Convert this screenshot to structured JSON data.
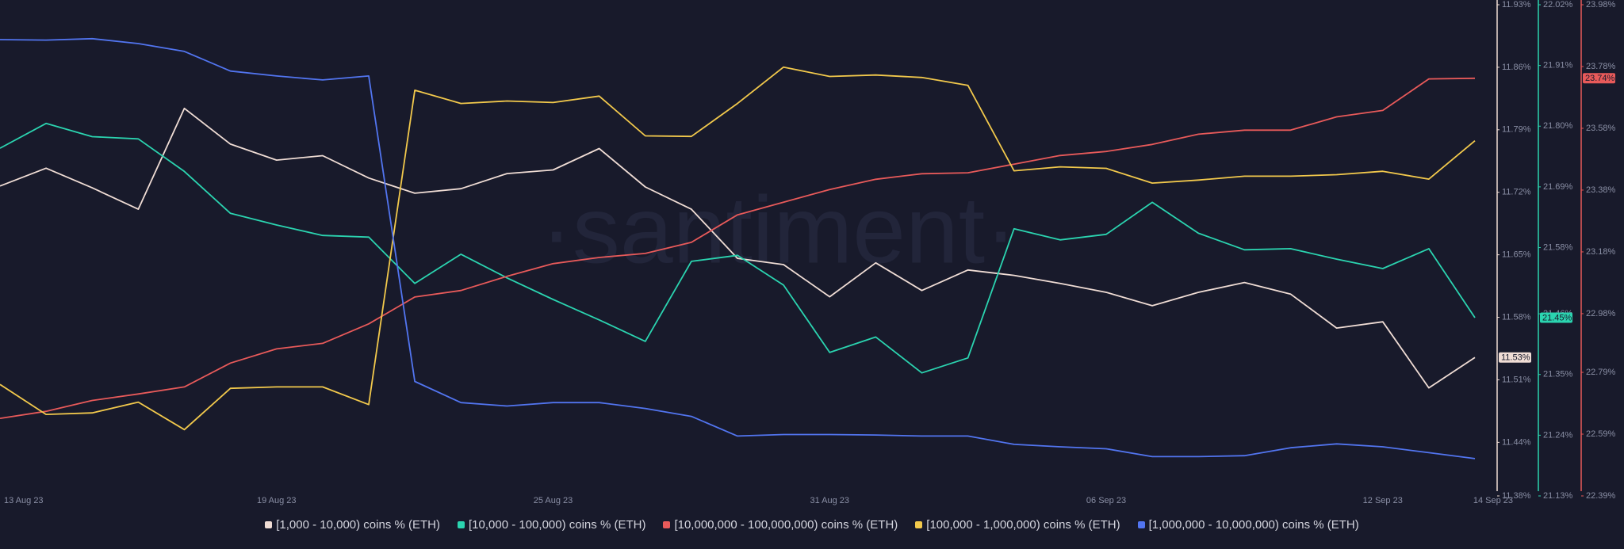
{
  "chart_data": {
    "type": "line",
    "watermark": "·santiment·",
    "categories": [
      "13 Aug 23",
      null,
      null,
      null,
      null,
      null,
      "19 Aug 23",
      null,
      null,
      null,
      null,
      null,
      "25 Aug 23",
      null,
      null,
      null,
      null,
      null,
      "31 Aug 23",
      null,
      null,
      null,
      null,
      null,
      "06 Sep 23",
      null,
      null,
      null,
      null,
      null,
      "12 Sep 23",
      null,
      "14 Sep 23"
    ],
    "axes": [
      {
        "lim": [
          11.38,
          11.93
        ],
        "color": "#f0ddd5",
        "ticks": [
          {
            "value": 11.38,
            "label": "11.38%"
          },
          {
            "value": 11.44,
            "label": "11.44%"
          },
          {
            "value": 11.51,
            "label": "11.51%"
          },
          {
            "value": 11.58,
            "label": "11.58%"
          },
          {
            "value": 11.65,
            "label": "11.65%"
          },
          {
            "value": 11.72,
            "label": "11.72%"
          },
          {
            "value": 11.79,
            "label": "11.79%"
          },
          {
            "value": 11.86,
            "label": "11.86%"
          },
          {
            "value": 11.93,
            "label": "11.93%"
          }
        ]
      },
      {
        "lim": [
          21.13,
          22.02
        ],
        "color": "#2bd4b0",
        "ticks": [
          {
            "value": 21.13,
            "label": "21.13%"
          },
          {
            "value": 21.24,
            "label": "21.24%"
          },
          {
            "value": 21.35,
            "label": "21.35%"
          },
          {
            "value": 21.46,
            "label": "21.46%"
          },
          {
            "value": 21.58,
            "label": "21.58%"
          },
          {
            "value": 21.69,
            "label": "21.69%"
          },
          {
            "value": 21.8,
            "label": "21.80%"
          },
          {
            "value": 21.91,
            "label": "21.91%"
          },
          {
            "value": 22.02,
            "label": "22.02%"
          }
        ]
      },
      {
        "lim": [
          22.39,
          23.98
        ],
        "color": "#e85a5a",
        "ticks": [
          {
            "value": 22.39,
            "label": "22.39%"
          },
          {
            "value": 22.59,
            "label": "22.59%"
          },
          {
            "value": 22.79,
            "label": "22.79%"
          },
          {
            "value": 22.98,
            "label": "22.98%"
          },
          {
            "value": 23.18,
            "label": "23.18%"
          },
          {
            "value": 23.38,
            "label": "23.38%"
          },
          {
            "value": 23.58,
            "label": "23.58%"
          },
          {
            "value": 23.78,
            "label": "23.78%"
          },
          {
            "value": 23.98,
            "label": "23.98%"
          }
        ]
      },
      {
        "lim": [
          0,
          100
        ]
      },
      {
        "lim": [
          0,
          100
        ]
      }
    ],
    "series": [
      {
        "name": "[1,000 - 10,000) coins % (ETH)",
        "color": "#f0ddd5",
        "axis": 0,
        "last_label": "11.53%",
        "values": [
          11.727,
          11.747,
          11.725,
          11.701,
          11.814,
          11.774,
          11.756,
          11.761,
          11.736,
          11.719,
          11.724,
          11.741,
          11.745,
          11.769,
          11.726,
          11.701,
          11.646,
          11.639,
          11.603,
          11.641,
          11.61,
          11.633,
          11.627,
          11.618,
          11.608,
          11.593,
          11.608,
          11.619,
          11.606,
          11.568,
          11.575,
          11.501,
          11.535
        ]
      },
      {
        "name": "[10,000 - 100,000) coins % (ETH)",
        "color": "#2bd4b0",
        "axis": 1,
        "last_label": "21.45%",
        "values": [
          21.76,
          21.805,
          21.781,
          21.777,
          21.718,
          21.642,
          21.621,
          21.602,
          21.599,
          21.515,
          21.568,
          21.525,
          21.486,
          21.449,
          21.41,
          21.555,
          21.566,
          21.512,
          21.39,
          21.418,
          21.353,
          21.38,
          21.614,
          21.594,
          21.604,
          21.662,
          21.606,
          21.576,
          21.578,
          21.559,
          21.542,
          21.578,
          21.453
        ]
      },
      {
        "name": "[10,000,000 - 100,000,000) coins % (ETH)",
        "color": "#e85a5a",
        "axis": 2,
        "last_label": "23.74%",
        "values": [
          22.641,
          22.664,
          22.699,
          22.72,
          22.743,
          22.82,
          22.866,
          22.884,
          22.947,
          23.034,
          23.055,
          23.101,
          23.142,
          23.162,
          23.175,
          23.211,
          23.3,
          23.341,
          23.382,
          23.415,
          23.433,
          23.436,
          23.464,
          23.492,
          23.505,
          23.528,
          23.561,
          23.574,
          23.574,
          23.617,
          23.638,
          23.74,
          23.742
        ]
      },
      {
        "name": "[100,000  - 1,000,000) coins % (ETH)",
        "color": "#f2c94c",
        "axis": 3,
        "values": [
          22.7,
          16.6,
          16.9,
          19.1,
          13.5,
          21.9,
          22.2,
          22.2,
          18.6,
          82.6,
          79.9,
          80.4,
          80.1,
          81.4,
          73.3,
          73.2,
          79.9,
          87.3,
          85.4,
          85.7,
          85.2,
          83.6,
          66.2,
          67.0,
          66.7,
          63.7,
          64.3,
          65.1,
          65.1,
          65.4,
          66.1,
          64.5,
          72.3
        ]
      },
      {
        "name": "[1,000,000 - 10,000,000) coins % (ETH)",
        "color": "#5275f0",
        "axis": 4,
        "values": [
          92.9,
          92.8,
          93.1,
          92.1,
          90.5,
          86.5,
          85.5,
          84.7,
          85.5,
          23.3,
          19.0,
          18.3,
          19.0,
          19.0,
          17.8,
          16.2,
          12.2,
          12.5,
          12.5,
          12.4,
          12.2,
          12.2,
          10.5,
          10.0,
          9.6,
          8.0,
          8.0,
          8.2,
          9.8,
          10.6,
          10.0,
          8.8,
          7.6
        ]
      }
    ]
  }
}
